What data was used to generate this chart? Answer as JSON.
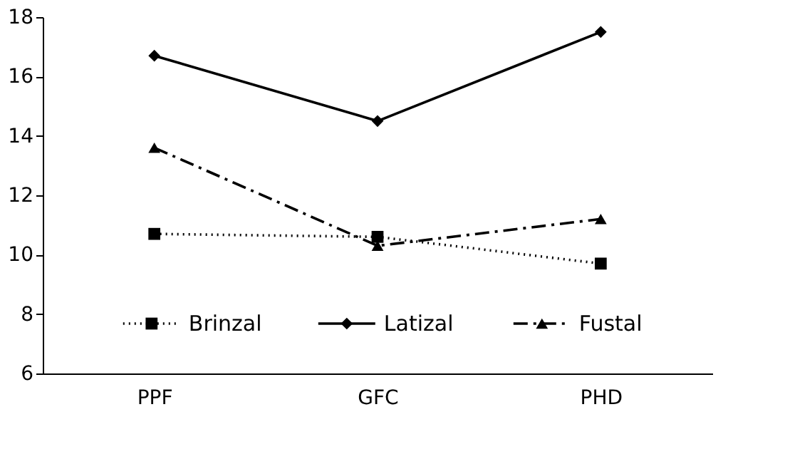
{
  "chart_data": {
    "type": "line",
    "categories": [
      "PPF",
      "GFC",
      "PHD"
    ],
    "series": [
      {
        "name": "Brinzal",
        "color": "#000000",
        "values": [
          10.7,
          10.6,
          9.7
        ],
        "line_style": "dotted",
        "marker": "square"
      },
      {
        "name": "Latizal",
        "color": "#000000",
        "values": [
          16.7,
          14.5,
          17.5
        ],
        "line_style": "solid",
        "marker": "diamond"
      },
      {
        "name": "Fustal",
        "color": "#000000",
        "values": [
          13.6,
          10.3,
          11.2
        ],
        "line_style": "dashed",
        "marker": "triangle"
      }
    ],
    "ylim": [
      6,
      18
    ],
    "yticks": [
      6,
      8,
      10,
      12,
      14,
      16,
      18
    ],
    "grid": false,
    "legend": "bottom"
  }
}
